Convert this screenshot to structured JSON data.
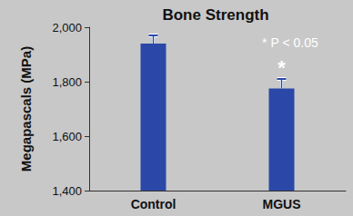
{
  "chart_data": {
    "type": "bar",
    "title": "Bone Strength",
    "y_label": "Megapascals (MPa)",
    "categories": [
      "Control",
      "MGUS"
    ],
    "values": [
      1940,
      1775
    ],
    "errors": [
      30,
      35
    ],
    "significance_markers": [
      null,
      "*"
    ],
    "annotation": "* P < 0.05",
    "color": "#2b48a8",
    "ylim": [
      1400,
      2000
    ],
    "yticks": [
      {
        "value": 1400,
        "label": "1,400"
      },
      {
        "value": 1600,
        "label": "1,600"
      },
      {
        "value": 1800,
        "label": "1,800"
      },
      {
        "value": 2000,
        "label": "2,000"
      }
    ],
    "grid": false
  }
}
